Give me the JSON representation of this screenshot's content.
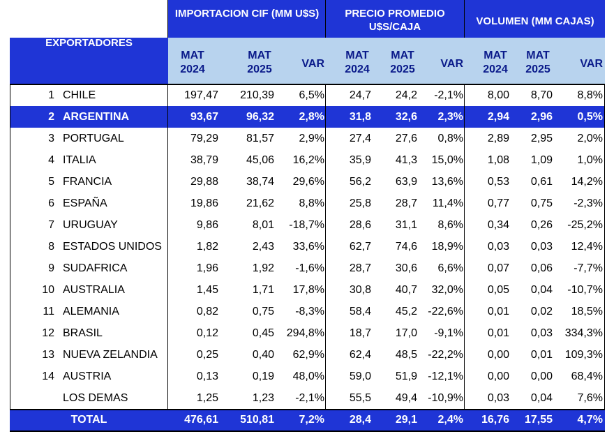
{
  "header": {
    "exportadores": "EXPORTADORES",
    "group1": "IMPORTACION CIF (MM U$S)",
    "group2": "PRECIO PROMEDIO U$S/CAJA",
    "group3": "VOLUMEN (MM CAJAS)",
    "mat_label": "MAT",
    "year1": "2024",
    "year2": "2025",
    "var": "VAR"
  },
  "rows": [
    {
      "rank": "1",
      "country": "CHILE",
      "cif24": "197,47",
      "cif25": "210,39",
      "cifvar": "6,5%",
      "p24": "24,7",
      "p25": "24,2",
      "pvar": "-2,1%",
      "v24": "8,00",
      "v25": "8,70",
      "vvar": "8,8%"
    },
    {
      "rank": "2",
      "country": "ARGENTINA",
      "cif24": "93,67",
      "cif25": "96,32",
      "cifvar": "2,8%",
      "p24": "31,8",
      "p25": "32,6",
      "pvar": "2,3%",
      "v24": "2,94",
      "v25": "2,96",
      "vvar": "0,5%"
    },
    {
      "rank": "3",
      "country": "PORTUGAL",
      "cif24": "79,29",
      "cif25": "81,57",
      "cifvar": "2,9%",
      "p24": "27,4",
      "p25": "27,6",
      "pvar": "0,8%",
      "v24": "2,89",
      "v25": "2,95",
      "vvar": "2,0%"
    },
    {
      "rank": "4",
      "country": "ITALIA",
      "cif24": "38,79",
      "cif25": "45,06",
      "cifvar": "16,2%",
      "p24": "35,9",
      "p25": "41,3",
      "pvar": "15,0%",
      "v24": "1,08",
      "v25": "1,09",
      "vvar": "1,0%"
    },
    {
      "rank": "5",
      "country": "FRANCIA",
      "cif24": "29,88",
      "cif25": "38,74",
      "cifvar": "29,6%",
      "p24": "56,2",
      "p25": "63,9",
      "pvar": "13,6%",
      "v24": "0,53",
      "v25": "0,61",
      "vvar": "14,2%"
    },
    {
      "rank": "6",
      "country": "ESPAÑA",
      "cif24": "19,86",
      "cif25": "21,62",
      "cifvar": "8,8%",
      "p24": "25,8",
      "p25": "28,7",
      "pvar": "11,4%",
      "v24": "0,77",
      "v25": "0,75",
      "vvar": "-2,3%"
    },
    {
      "rank": "7",
      "country": "URUGUAY",
      "cif24": "9,86",
      "cif25": "8,01",
      "cifvar": "-18,7%",
      "p24": "28,6",
      "p25": "31,1",
      "pvar": "8,6%",
      "v24": "0,34",
      "v25": "0,26",
      "vvar": "-25,2%"
    },
    {
      "rank": "8",
      "country": "ESTADOS UNIDOS",
      "cif24": "1,82",
      "cif25": "2,43",
      "cifvar": "33,6%",
      "p24": "62,7",
      "p25": "74,6",
      "pvar": "18,9%",
      "v24": "0,03",
      "v25": "0,03",
      "vvar": "12,4%"
    },
    {
      "rank": "9",
      "country": "SUDAFRICA",
      "cif24": "1,96",
      "cif25": "1,92",
      "cifvar": "-1,6%",
      "p24": "28,7",
      "p25": "30,6",
      "pvar": "6,6%",
      "v24": "0,07",
      "v25": "0,06",
      "vvar": "-7,7%"
    },
    {
      "rank": "10",
      "country": "AUSTRALIA",
      "cif24": "1,45",
      "cif25": "1,71",
      "cifvar": "17,8%",
      "p24": "30,8",
      "p25": "40,7",
      "pvar": "32,0%",
      "v24": "0,05",
      "v25": "0,04",
      "vvar": "-10,7%"
    },
    {
      "rank": "11",
      "country": "ALEMANIA",
      "cif24": "0,82",
      "cif25": "0,75",
      "cifvar": "-8,3%",
      "p24": "58,4",
      "p25": "45,2",
      "pvar": "-22,6%",
      "v24": "0,01",
      "v25": "0,02",
      "vvar": "18,5%"
    },
    {
      "rank": "12",
      "country": "BRASIL",
      "cif24": "0,12",
      "cif25": "0,45",
      "cifvar": "294,8%",
      "p24": "18,7",
      "p25": "17,0",
      "pvar": "-9,1%",
      "v24": "0,01",
      "v25": "0,03",
      "vvar": "334,3%"
    },
    {
      "rank": "13",
      "country": "NUEVA ZELANDIA",
      "cif24": "0,25",
      "cif25": "0,40",
      "cifvar": "62,9%",
      "p24": "62,4",
      "p25": "48,5",
      "pvar": "-22,2%",
      "v24": "0,00",
      "v25": "0,01",
      "vvar": "109,3%"
    },
    {
      "rank": "14",
      "country": "AUSTRIA",
      "cif24": "0,13",
      "cif25": "0,19",
      "cifvar": "48,0%",
      "p24": "59,0",
      "p25": "51,9",
      "pvar": "-12,1%",
      "v24": "0,00",
      "v25": "0,00",
      "vvar": "68,4%"
    },
    {
      "rank": "",
      "country": "LOS DEMAS",
      "cif24": "1,25",
      "cif25": "1,23",
      "cifvar": "-2,1%",
      "p24": "55,5",
      "p25": "49,4",
      "pvar": "-10,9%",
      "v24": "0,03",
      "v25": "0,04",
      "vvar": "7,6%"
    }
  ],
  "total": {
    "label": "TOTAL",
    "cif24": "476,61",
    "cif25": "510,81",
    "cifvar": "7,2%",
    "p24": "28,4",
    "p25": "29,1",
    "pvar": "2,4%",
    "v24": "16,76",
    "v25": "17,55",
    "vvar": "4,7%"
  },
  "colors": {
    "header_blue": "#1f35d6",
    "subheader_blue": "#b8d3ee",
    "subheader_text": "#0a1a8a"
  }
}
